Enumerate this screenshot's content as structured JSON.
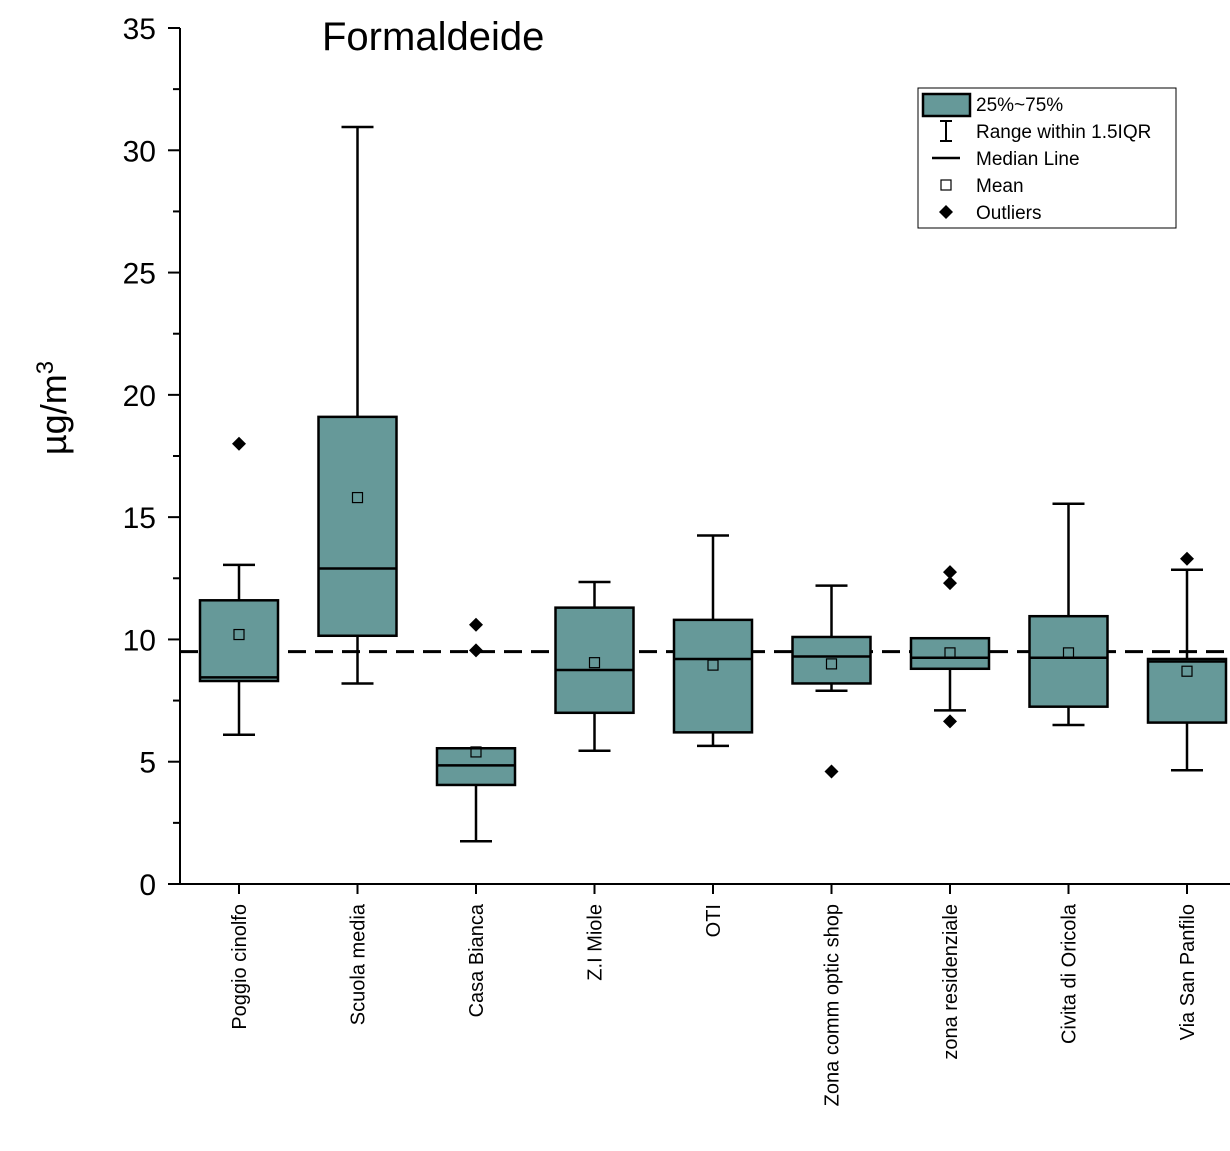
{
  "chart_data": {
    "type": "box",
    "title": "Formaldeide",
    "ylabel": "µg/m",
    "ylabel_superscript": "3",
    "ylim": [
      0,
      35
    ],
    "yticks": [
      0,
      5,
      10,
      15,
      20,
      25,
      30,
      35
    ],
    "reference_line": 9.5,
    "box_color": "#669999",
    "categories": [
      "Poggio cinolfo",
      "Scuola media",
      "Casa Bianca",
      "Z.I Miole",
      "OTI",
      "Zona comm optic shop",
      "zona residenziale",
      "Civita di Oricola",
      "Via San Panfilo"
    ],
    "boxes": [
      {
        "whisker_low": 6.1,
        "q1": 8.3,
        "median": 8.45,
        "q3": 11.6,
        "whisker_high": 13.05,
        "mean": 10.2,
        "outliers": [
          18.0
        ]
      },
      {
        "whisker_low": 8.2,
        "q1": 10.15,
        "median": 12.9,
        "q3": 19.1,
        "whisker_high": 30.95,
        "mean": 15.8,
        "outliers": []
      },
      {
        "whisker_low": 1.75,
        "q1": 4.05,
        "median": 4.85,
        "q3": 5.55,
        "whisker_high": 5.55,
        "mean": 5.4,
        "outliers": [
          10.6,
          9.55
        ]
      },
      {
        "whisker_low": 5.45,
        "q1": 7.0,
        "median": 8.75,
        "q3": 11.3,
        "whisker_high": 12.35,
        "mean": 9.05,
        "outliers": []
      },
      {
        "whisker_low": 5.65,
        "q1": 6.2,
        "median": 9.2,
        "q3": 10.8,
        "whisker_high": 14.25,
        "mean": 8.95,
        "outliers": []
      },
      {
        "whisker_low": 7.9,
        "q1": 8.2,
        "median": 9.3,
        "q3": 10.1,
        "whisker_high": 12.2,
        "mean": 9.0,
        "outliers": [
          4.6
        ]
      },
      {
        "whisker_low": 7.1,
        "q1": 8.8,
        "median": 9.25,
        "q3": 10.05,
        "whisker_high": 10.05,
        "mean": 9.45,
        "outliers": [
          12.75,
          12.3,
          6.65
        ]
      },
      {
        "whisker_low": 6.5,
        "q1": 7.25,
        "median": 9.25,
        "q3": 10.95,
        "whisker_high": 15.55,
        "mean": 9.45,
        "outliers": []
      },
      {
        "whisker_low": 4.65,
        "q1": 6.6,
        "median": 9.1,
        "q3": 9.2,
        "whisker_high": 12.85,
        "mean": 8.7,
        "outliers": [
          13.3
        ]
      }
    ],
    "legend": {
      "position": "top-right",
      "items": [
        {
          "symbol": "box",
          "label": "25%~75%"
        },
        {
          "symbol": "whisker",
          "label": "Range within 1.5IQR"
        },
        {
          "symbol": "line",
          "label": "Median Line"
        },
        {
          "symbol": "square",
          "label": "Mean"
        },
        {
          "symbol": "diamond",
          "label": "Outliers"
        }
      ]
    }
  }
}
